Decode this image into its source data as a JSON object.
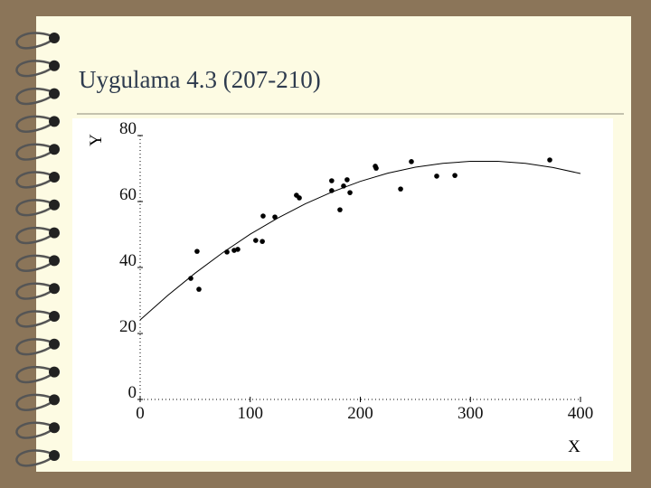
{
  "title": "Uygulama 4.3 (207-210)",
  "chart_data": {
    "type": "scatter",
    "x_label": "X",
    "y_label": "Y",
    "x": [
      46,
      51.7,
      53.4,
      78.9,
      85.4,
      88.7,
      105,
      111,
      111.7,
      122.4,
      142,
      144.6,
      174,
      174,
      181.5,
      184.8,
      188,
      190.6,
      213.6,
      214.4,
      236.6,
      246.4,
      269.4,
      285.9,
      372.1
    ],
    "values": [
      36.7,
      44.9,
      33.4,
      44.7,
      45.2,
      45.5,
      48.2,
      47.9,
      55.6,
      55.3,
      61.9,
      61.1,
      66.3,
      63.3,
      57.5,
      64.7,
      66.6,
      62.7,
      70.7,
      70.1,
      63.8,
      72.1,
      67.7,
      67.9,
      72.6
    ],
    "color": "#000000",
    "fit": {
      "x": [
        0,
        25,
        50,
        75,
        100,
        125,
        150,
        175,
        200,
        225,
        250,
        275,
        300,
        325,
        350,
        375,
        400
      ],
      "values": [
        24.1,
        31.5,
        38.3,
        44.5,
        50.1,
        55.0,
        59.3,
        63.0,
        66.1,
        68.6,
        70.4,
        71.6,
        72.2,
        72.2,
        71.6,
        70.3,
        68.5
      ]
    },
    "xlim": [
      0,
      400
    ],
    "ylim": [
      0,
      80
    ],
    "xticks": [
      0,
      100,
      200,
      300,
      400
    ],
    "yticks": [
      0,
      20,
      40,
      60,
      80
    ],
    "grid": false
  }
}
